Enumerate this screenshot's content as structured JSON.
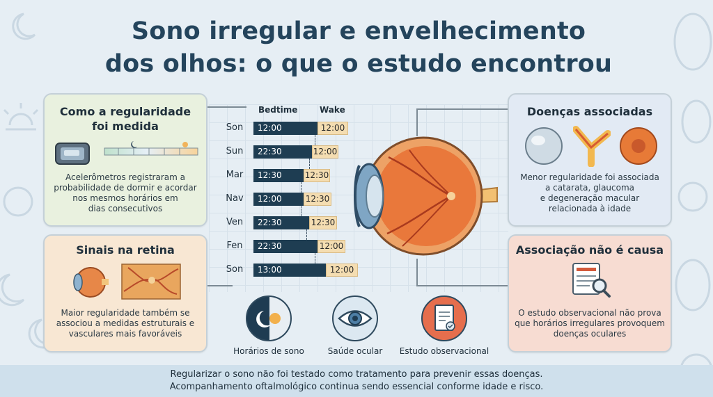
{
  "title": {
    "line1": "Sono irregular e envelhecimento",
    "line2": "dos olhos: o que o estudo encontrou"
  },
  "measure": {
    "title_line1": "Como a regularidade",
    "title_line2": "foi medida",
    "text_lines": [
      "Acelerômetros registraram a",
      "probabilidade de dormir e acordar",
      "nos mesmos horários em",
      "dias consecutivos"
    ]
  },
  "retina": {
    "title": "Sinais na retina",
    "text_lines": [
      "Maior regularidade também se",
      "associou a medidas estruturais e",
      "vasculares mais favoráveis"
    ]
  },
  "diseases": {
    "title": "Doenças associadas",
    "text_lines": [
      "Menor regularidade foi associada",
      "a catarata, glaucoma",
      "e degeneração macular",
      "relacionada à idade"
    ]
  },
  "cause": {
    "title": "Associação não é causa",
    "text_lines": [
      "O estudo observacional não prova",
      "que horários irregulares provoquem",
      "doenças oculares"
    ]
  },
  "schedule": {
    "bed_header": "Bedtime",
    "wake_header": "Wake",
    "rows": [
      {
        "day": "Son",
        "bed": "12:00",
        "wake": "12:00"
      },
      {
        "day": "Sun",
        "bed": "22:30",
        "wake": "12:00"
      },
      {
        "day": "Mar",
        "bed": "12:30",
        "wake": "12:30"
      },
      {
        "day": "Nav",
        "bed": "12:00",
        "wake": "12:30"
      },
      {
        "day": "Ven",
        "bed": "22:30",
        "wake": "12:30"
      },
      {
        "day": "Fen",
        "bed": "22:30",
        "wake": "12:00"
      },
      {
        "day": "Son",
        "bed": "13:00",
        "wake": "12:00"
      }
    ]
  },
  "bottom_icons": [
    "Horários de sono",
    "Saúde ocular",
    "Estudo observacional"
  ],
  "footer": {
    "line1": "Regularizar o sono não foi testado como tratamento para prevenir essas doenças.",
    "line2": "Acompanhamento oftalmológico continua sendo essencial conforme idade e risco."
  },
  "colors": {
    "bedtime_bar": "#1e3d52",
    "wake_bar": "#f4ddb1",
    "measure_card": "#e9f1df",
    "retina_card": "#f8e7d3",
    "diseases_card": "#e2eaf4",
    "cause_card": "#f7dcd2"
  }
}
